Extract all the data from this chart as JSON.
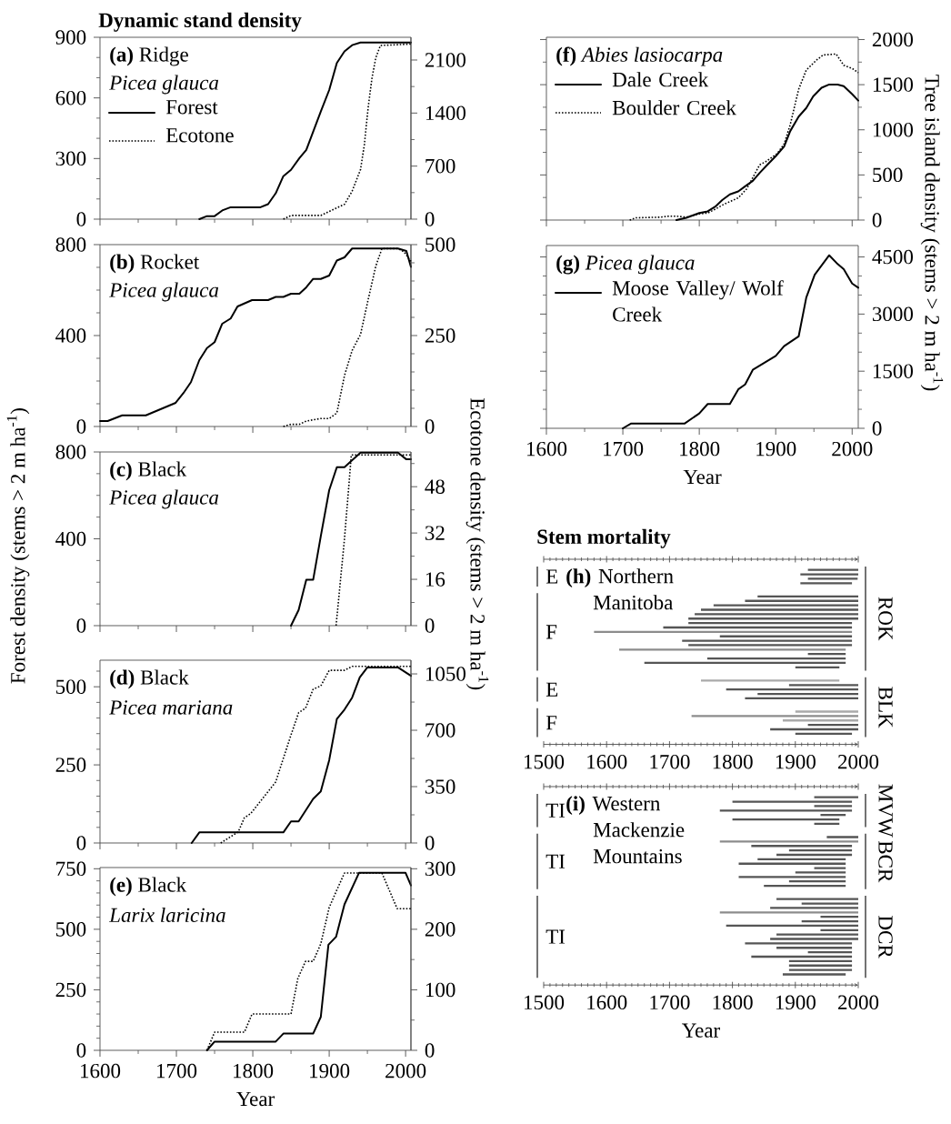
{
  "chart_data": [
    {
      "type": "line",
      "title": "**(a)** Ridge",
      "subtitle": "Picea glauca",
      "annotations": [
        "Dynamic stand density"
      ],
      "legend": "top left",
      "tick_labels": "y",
      "xlim": [
        1600,
        2007
      ],
      "xticks": [
        1600,
        {
          "value": 1650,
          "label": null
        },
        1700,
        {
          "value": 1750,
          "label": null
        },
        1800,
        {
          "value": 1850,
          "label": null
        },
        1900,
        {
          "value": 1950,
          "label": null
        },
        2000
      ],
      "ylim": [
        0,
        900
      ],
      "yticks": [
        0,
        {
          "value": 100,
          "label": null
        },
        {
          "value": 200,
          "label": null
        },
        300,
        {
          "value": 400,
          "label": null
        },
        {
          "value": 500,
          "label": null
        },
        600,
        {
          "value": 700,
          "label": null
        },
        {
          "value": 800,
          "label": null
        },
        900
      ],
      "y2lim": [
        0,
        2400
      ],
      "y2ticks": [
        0,
        {
          "value": 350,
          "label": null
        },
        700,
        {
          "value": 1050,
          "label": null
        },
        1400,
        {
          "value": 1750,
          "label": null
        },
        2100
      ],
      "series": [
        {
          "name": "Forest",
          "color": "#000000",
          "line_style": "solid",
          "x": [
            1730,
            1740,
            1750,
            1760,
            1771,
            1810,
            1820,
            1830,
            1840,
            1850,
            1861,
            1870,
            1879,
            1889,
            1900,
            1910,
            1920,
            1930,
            1941,
            2007
          ],
          "values": [
            0,
            15,
            15,
            43,
            59,
            59,
            74,
            128,
            213,
            244,
            302,
            343,
            433,
            533,
            639,
            773,
            830,
            861,
            874,
            874
          ]
        },
        {
          "name": "Ecotone",
          "color": "#000000",
          "line_style": "dotted",
          "axis": "y2",
          "x": [
            1840,
            1850,
            1889,
            1900,
            1920,
            1930,
            1941,
            1946,
            1951,
            1956,
            1961,
            1967,
            2007
          ],
          "values": [
            0,
            49,
            49,
            102,
            196,
            368,
            655,
            982,
            1474,
            1863,
            2129,
            2292,
            2310
          ]
        }
      ]
    },
    {
      "type": "line",
      "title": "**(b)** Rocket",
      "subtitle": "Picea glauca",
      "tick_labels": "y",
      "xlim": [
        1600,
        2007
      ],
      "xticks": [
        1600,
        {
          "value": 1650,
          "label": null
        },
        1700,
        {
          "value": 1750,
          "label": null
        },
        1800,
        {
          "value": 1850,
          "label": null
        },
        1900,
        {
          "value": 1950,
          "label": null
        },
        2000
      ],
      "ylim": [
        0,
        800
      ],
      "yticks": [
        0,
        {
          "value": 100,
          "label": null
        },
        {
          "value": 200,
          "label": null
        },
        {
          "value": 300,
          "label": null
        },
        400,
        {
          "value": 500,
          "label": null
        },
        {
          "value": 600,
          "label": null
        },
        {
          "value": 700,
          "label": null
        },
        800
      ],
      "y2lim": [
        0,
        500
      ],
      "y2ticks": [
        0,
        {
          "value": 50,
          "label": null
        },
        {
          "value": 100,
          "label": null
        },
        {
          "value": 150,
          "label": null
        },
        {
          "value": 200,
          "label": null
        },
        250,
        {
          "value": 300,
          "label": null
        },
        {
          "value": 350,
          "label": null
        },
        {
          "value": 400,
          "label": null
        },
        {
          "value": 450,
          "label": null
        },
        500
      ],
      "series": [
        {
          "color": "#000000",
          "line_style": "solid",
          "x": [
            1600,
            1610,
            1629,
            1660,
            1699,
            1709,
            1719,
            1730,
            1740,
            1750,
            1760,
            1771,
            1780,
            1799,
            1820,
            1830,
            1840,
            1850,
            1861,
            1870,
            1879,
            1889,
            1900,
            1910,
            1920,
            1930,
            1990,
            2001,
            2007
          ],
          "values": [
            24,
            24,
            49,
            49,
            104,
            146,
            195,
            292,
            345,
            371,
            452,
            475,
            528,
            556,
            556,
            570,
            570,
            584,
            584,
            612,
            649,
            649,
            664,
            730,
            744,
            783,
            783,
            772,
            702
          ]
        },
        {
          "color": "#000000",
          "line_style": "dotted",
          "axis": "y2",
          "x": [
            1840,
            1850,
            1861,
            1870,
            1889,
            1900,
            1910,
            1920,
            1930,
            1941,
            1951,
            1961,
            1969,
            1990,
            1998,
            2007
          ],
          "values": [
            0,
            6,
            6,
            15,
            22,
            22,
            37,
            140,
            209,
            253,
            349,
            441,
            489,
            489,
            480,
            454
          ]
        }
      ]
    },
    {
      "type": "line",
      "title": "**(c)** Black",
      "subtitle": "Picea glauca",
      "ylabel": "Forest density (stems > 2 m ha$^{-1}$)",
      "y2label": "Ecotone density (stems > 2 m ha$^{-1}$)",
      "tick_labels": "y",
      "xlim": [
        1600,
        2007
      ],
      "xticks": [
        1600,
        {
          "value": 1650,
          "label": null
        },
        1700,
        {
          "value": 1750,
          "label": null
        },
        1800,
        {
          "value": 1850,
          "label": null
        },
        1900,
        {
          "value": 1950,
          "label": null
        },
        2000
      ],
      "ylim": [
        0,
        800
      ],
      "yticks": [
        0,
        {
          "value": 100,
          "label": null
        },
        {
          "value": 200,
          "label": null
        },
        {
          "value": 300,
          "label": null
        },
        400,
        {
          "value": 500,
          "label": null
        },
        {
          "value": 600,
          "label": null
        },
        {
          "value": 700,
          "label": null
        },
        800
      ],
      "y2lim": [
        0,
        60
      ],
      "y2ticks": [
        0,
        {
          "value": 8,
          "label": null
        },
        16,
        {
          "value": 24,
          "label": null
        },
        32,
        {
          "value": 40,
          "label": null
        },
        48,
        {
          "value": 56,
          "label": null
        }
      ],
      "series": [
        {
          "color": "#000000",
          "line_style": "solid",
          "x": [
            1850,
            1860,
            1870,
            1879,
            1889,
            1900,
            1910,
            1920,
            1941,
            1990,
            2001,
            2007
          ],
          "values": [
            0,
            72,
            211,
            211,
            412,
            624,
            730,
            730,
            797,
            797,
            766,
            766
          ]
        },
        {
          "color": "#000000",
          "line_style": "dotted",
          "axis": "y2",
          "x": [
            1909,
            1920,
            1929,
            2007
          ],
          "values": [
            0,
            30,
            59,
            59
          ]
        }
      ]
    },
    {
      "type": "line",
      "title": "**(d)** Black",
      "subtitle": "Picea mariana",
      "tick_labels": "y",
      "xlim": [
        1600,
        2007
      ],
      "xticks": [
        1600,
        {
          "value": 1650,
          "label": null
        },
        1700,
        {
          "value": 1750,
          "label": null
        },
        1800,
        {
          "value": 1850,
          "label": null
        },
        1900,
        {
          "value": 1950,
          "label": null
        },
        2000
      ],
      "ylim": [
        0,
        585
      ],
      "yticks": [
        0,
        {
          "value": 50,
          "label": null
        },
        {
          "value": 100,
          "label": null
        },
        {
          "value": 150,
          "label": null
        },
        {
          "value": 200,
          "label": null
        },
        250,
        {
          "value": 300,
          "label": null
        },
        {
          "value": 350,
          "label": null
        },
        {
          "value": 400,
          "label": null
        },
        {
          "value": 450,
          "label": null
        },
        500,
        {
          "value": 550,
          "label": null
        }
      ],
      "y2lim": [
        0,
        1135
      ],
      "y2ticks": [
        0,
        {
          "value": 175,
          "label": null
        },
        350,
        {
          "value": 525,
          "label": null
        },
        700,
        {
          "value": 875,
          "label": null
        },
        1050
      ],
      "series": [
        {
          "color": "#000000",
          "line_style": "solid",
          "x": [
            1720,
            1730,
            1840,
            1850,
            1860,
            1879,
            1889,
            1900,
            1910,
            1920,
            1930,
            1940,
            1950,
            1990,
            2007
          ],
          "values": [
            0,
            34,
            34,
            69,
            69,
            141,
            165,
            265,
            397,
            427,
            465,
            530,
            562,
            562,
            535
          ]
        },
        {
          "color": "#000000",
          "line_style": "dotted",
          "axis": "y2",
          "x": [
            1758,
            1781,
            1789,
            1797,
            1830,
            1840,
            1850,
            1860,
            1869,
            1879,
            1889,
            1900,
            1920,
            1930,
            1950,
            2007
          ],
          "values": [
            0,
            69,
            157,
            182,
            379,
            526,
            671,
            809,
            837,
            955,
            975,
            1072,
            1072,
            1097,
            1097,
            1097
          ]
        }
      ]
    },
    {
      "type": "line",
      "title": "**(e)** Black",
      "subtitle": "Larix laricina",
      "xlabel": "Year",
      "xlim": [
        1600,
        2007
      ],
      "xticks": [
        1600,
        {
          "value": 1650,
          "label": null
        },
        1700,
        {
          "value": 1750,
          "label": null
        },
        1800,
        {
          "value": 1850,
          "label": null
        },
        1900,
        {
          "value": 1950,
          "label": null
        },
        2000
      ],
      "ylim": [
        0,
        755
      ],
      "yticks": [
        0,
        {
          "value": 50,
          "label": null
        },
        {
          "value": 100,
          "label": null
        },
        {
          "value": 150,
          "label": null
        },
        {
          "value": 200,
          "label": null
        },
        250,
        {
          "value": 300,
          "label": null
        },
        {
          "value": 350,
          "label": null
        },
        {
          "value": 400,
          "label": null
        },
        {
          "value": 450,
          "label": null
        },
        500,
        {
          "value": 550,
          "label": null
        },
        {
          "value": 600,
          "label": null
        },
        {
          "value": 650,
          "label": null
        },
        {
          "value": 700,
          "label": null
        },
        750
      ],
      "y2lim": [
        0,
        302
      ],
      "y2ticks": [
        0,
        {
          "value": 50,
          "label": null
        },
        100,
        {
          "value": 150,
          "label": null
        },
        200,
        {
          "value": 250,
          "label": null
        },
        300
      ],
      "series": [
        {
          "color": "#000000",
          "line_style": "solid",
          "x": [
            1740,
            1750,
            1830,
            1840,
            1879,
            1889,
            1899,
            1909,
            1920,
            1939,
            2000,
            2007
          ],
          "values": [
            0,
            36,
            36,
            69,
            69,
            138,
            436,
            469,
            603,
            733,
            733,
            681
          ]
        },
        {
          "color": "#000000",
          "line_style": "dotted",
          "axis": "y2",
          "x": [
            1740,
            1750,
            1789,
            1799,
            1850,
            1859,
            1869,
            1879,
            1889,
            1900,
            1910,
            1920,
            1969,
            1989,
            2007
          ],
          "values": [
            0,
            30,
            30,
            60,
            60,
            119,
            147,
            147,
            176,
            236,
            265,
            293,
            293,
            234,
            234
          ]
        }
      ]
    },
    {
      "type": "line",
      "title": "**(f)** *Abies lasiocarpa*",
      "ylabel": "Tree island density (stems > 2 m ha$^{-1}$)",
      "legend": "top left",
      "tick_labels": "y",
      "xlim": [
        1600,
        2008
      ],
      "xticks": [
        1600,
        {
          "value": 1650,
          "label": null
        },
        1700,
        {
          "value": 1750,
          "label": null
        },
        1800,
        {
          "value": 1850,
          "label": null
        },
        1900,
        {
          "value": 1950,
          "label": null
        },
        2000
      ],
      "ylim": [
        0,
        2025
      ],
      "yticks": [
        0,
        {
          "value": 250,
          "label": null
        },
        500,
        {
          "value": 750,
          "label": null
        },
        1000,
        {
          "value": 1250,
          "label": null
        },
        1500,
        {
          "value": 1750,
          "label": null
        },
        2000
      ],
      "series": [
        {
          "name": "Dale Creek",
          "color": "#000000",
          "line_style": "solid",
          "x": [
            1770,
            1783,
            1800,
            1811,
            1821,
            1830,
            1840,
            1851,
            1860,
            1870,
            1879,
            1889,
            1900,
            1911,
            1919,
            1930,
            1940,
            1949,
            1960,
            1970,
            1981,
            1989,
            2000,
            2008
          ],
          "values": [
            0,
            25,
            78,
            96,
            149,
            221,
            285,
            317,
            374,
            434,
            523,
            612,
            708,
            815,
            986,
            1146,
            1242,
            1370,
            1466,
            1502,
            1502,
            1484,
            1395,
            1324
          ]
        },
        {
          "name": "Boulder Creek",
          "color": "#000000",
          "line_style": "dotted",
          "x": [
            1709,
            1717,
            1749,
            1760,
            1770,
            1783,
            1800,
            1811,
            1821,
            1832,
            1851,
            1862,
            1870,
            1879,
            1887,
            1902,
            1911,
            1919,
            1930,
            1940,
            1953,
            1962,
            1979,
            1989,
            2000,
            2008
          ],
          "values": [
            0,
            25,
            32,
            43,
            43,
            32,
            68,
            78,
            121,
            174,
            246,
            345,
            470,
            612,
            648,
            737,
            843,
            1057,
            1448,
            1662,
            1769,
            1829,
            1840,
            1715,
            1680,
            1633
          ]
        }
      ]
    },
    {
      "type": "line",
      "title": "**(g)** *Picea glauca*",
      "xlabel": "Year",
      "legend": "top left",
      "xlim": [
        1600,
        2008
      ],
      "xticks": [
        1600,
        {
          "value": 1650,
          "label": null
        },
        1700,
        {
          "value": 1750,
          "label": null
        },
        1800,
        {
          "value": 1850,
          "label": null
        },
        1900,
        {
          "value": 1950,
          "label": null
        },
        2000
      ],
      "ylim": [
        0,
        4800
      ],
      "yticks": [
        0,
        {
          "value": 500,
          "label": null
        },
        {
          "value": 1000,
          "label": null
        },
        1500,
        {
          "value": 2000,
          "label": null
        },
        {
          "value": 2500,
          "label": null
        },
        3000,
        {
          "value": 3500,
          "label": null
        },
        {
          "value": 4000,
          "label": null
        },
        4500
      ],
      "series": [
        {
          "name": "Moose Valley/ Wolf Creek",
          "color": "#000000",
          "line_style": "solid",
          "x": [
            1700,
            1711,
            1781,
            1800,
            1811,
            1840,
            1851,
            1860,
            1870,
            1900,
            1911,
            1930,
            1940,
            1951,
            1970,
            1981,
            1989,
            2000,
            2008
          ],
          "values": [
            0,
            128,
            128,
            392,
            639,
            639,
            1023,
            1151,
            1535,
            1901,
            2157,
            2413,
            3436,
            4032,
            4544,
            4314,
            4177,
            3802,
            3691
          ]
        }
      ]
    },
    {
      "type": "bar",
      "orientation": "horizontal",
      "title": "Stem mortality",
      "subtitle": "**(h)** Northern Manitoba",
      "ylabel": "E",
      "y2label": "ROK",
      "tick_labels": false,
      "categories": [
        null,
        null,
        null,
        null
      ],
      "xlim": [
        1500,
        2000
      ],
      "xticks": [
        1500,
        {
          "value": 1510,
          "label": null
        },
        {
          "value": 1520,
          "label": null
        },
        {
          "value": 1530,
          "label": null
        },
        {
          "value": 1540,
          "label": null
        },
        {
          "value": 1550,
          "label": null
        },
        {
          "value": 1560,
          "label": null
        },
        {
          "value": 1570,
          "label": null
        },
        {
          "value": 1580,
          "label": null
        },
        {
          "value": 1590,
          "label": null
        },
        1600,
        {
          "value": 1610,
          "label": null
        },
        {
          "value": 1620,
          "label": null
        },
        {
          "value": 1630,
          "label": null
        },
        {
          "value": 1640,
          "label": null
        },
        {
          "value": 1650,
          "label": null
        },
        {
          "value": 1660,
          "label": null
        },
        {
          "value": 1670,
          "label": null
        },
        {
          "value": 1680,
          "label": null
        },
        {
          "value": 1690,
          "label": null
        },
        1700,
        {
          "value": 1710,
          "label": null
        },
        {
          "value": 1720,
          "label": null
        },
        {
          "value": 1730,
          "label": null
        },
        {
          "value": 1740,
          "label": null
        },
        {
          "value": 1750,
          "label": null
        },
        {
          "value": 1760,
          "label": null
        },
        {
          "value": 1770,
          "label": null
        },
        {
          "value": 1780,
          "label": null
        },
        {
          "value": 1790,
          "label": null
        },
        1800,
        {
          "value": 1810,
          "label": null
        },
        {
          "value": 1820,
          "label": null
        },
        {
          "value": 1830,
          "label": null
        },
        {
          "value": 1840,
          "label": null
        },
        {
          "value": 1850,
          "label": null
        },
        {
          "value": 1860,
          "label": null
        },
        {
          "value": 1870,
          "label": null
        },
        {
          "value": 1880,
          "label": null
        },
        {
          "value": 1890,
          "label": null
        },
        1900,
        {
          "value": 1910,
          "label": null
        },
        {
          "value": 1920,
          "label": null
        },
        {
          "value": 1930,
          "label": null
        },
        {
          "value": 1940,
          "label": null
        },
        {
          "value": 1950,
          "label": null
        },
        {
          "value": 1960,
          "label": null
        },
        {
          "value": 1970,
          "label": null
        },
        {
          "value": 1980,
          "label": null
        },
        {
          "value": 1990,
          "label": null
        },
        2000
      ],
      "base": [
        1920,
        1908,
        1920,
        1908
      ],
      "values": [
        80,
        92,
        79,
        82
      ],
      "colors": [
        "#555555",
        "#555555",
        "#555555",
        "#555555"
      ]
    },
    {
      "type": "bar",
      "orientation": "horizontal",
      "ylabel": "F",
      "tick_labels": false,
      "categories": [
        null,
        null,
        null,
        null,
        null,
        null,
        null,
        null,
        null,
        null,
        null,
        null,
        null,
        null,
        null,
        null,
        null
      ],
      "xlim": [
        1500,
        2000
      ],
      "base": [
        1840,
        1820,
        1770,
        1750,
        1740,
        1730,
        1730,
        1690,
        1580,
        1780,
        1720,
        1730,
        1620,
        1920,
        1760,
        1660,
        1900
      ],
      "values": [
        160,
        180,
        230,
        250,
        260,
        270,
        260,
        300,
        410,
        210,
        270,
        260,
        360,
        60,
        220,
        320,
        70
      ],
      "colors": [
        "#555555",
        "#555555",
        "#555555",
        "#555555",
        "#555555",
        "#555555",
        "#555555",
        "#555555",
        "#8c8c8c",
        "#555555",
        "#555555",
        "#555555",
        "#8c8c8c",
        "#555555",
        "#555555",
        "#555555",
        "#555555"
      ]
    },
    {
      "type": "bar",
      "orientation": "horizontal",
      "ylabel": "E",
      "y2label": "BLK",
      "tick_labels": false,
      "categories": [
        null,
        null,
        null,
        null,
        null
      ],
      "xlim": [
        1500,
        2000
      ],
      "base": [
        1750,
        1890,
        1790,
        1840,
        1820
      ],
      "values": [
        220,
        110,
        210,
        160,
        180
      ],
      "colors": [
        "#aaaaaa",
        "#555555",
        "#555555",
        "#555555",
        "#555555"
      ]
    },
    {
      "type": "bar",
      "orientation": "horizontal",
      "ylabel": "F",
      "tick_labels": "x",
      "categories": [
        null,
        null,
        null,
        null,
        null,
        null
      ],
      "xlim": [
        1500,
        2000
      ],
      "xticks": [
        1500,
        {
          "value": 1510,
          "label": null
        },
        {
          "value": 1520,
          "label": null
        },
        {
          "value": 1530,
          "label": null
        },
        {
          "value": 1540,
          "label": null
        },
        {
          "value": 1550,
          "label": null
        },
        {
          "value": 1560,
          "label": null
        },
        {
          "value": 1570,
          "label": null
        },
        {
          "value": 1580,
          "label": null
        },
        {
          "value": 1590,
          "label": null
        },
        1600,
        {
          "value": 1610,
          "label": null
        },
        {
          "value": 1620,
          "label": null
        },
        {
          "value": 1630,
          "label": null
        },
        {
          "value": 1640,
          "label": null
        },
        {
          "value": 1650,
          "label": null
        },
        {
          "value": 1660,
          "label": null
        },
        {
          "value": 1670,
          "label": null
        },
        {
          "value": 1680,
          "label": null
        },
        {
          "value": 1690,
          "label": null
        },
        1700,
        {
          "value": 1710,
          "label": null
        },
        {
          "value": 1720,
          "label": null
        },
        {
          "value": 1730,
          "label": null
        },
        {
          "value": 1740,
          "label": null
        },
        {
          "value": 1750,
          "label": null
        },
        {
          "value": 1760,
          "label": null
        },
        {
          "value": 1770,
          "label": null
        },
        {
          "value": 1780,
          "label": null
        },
        {
          "value": 1790,
          "label": null
        },
        1800,
        {
          "value": 1810,
          "label": null
        },
        {
          "value": 1820,
          "label": null
        },
        {
          "value": 1830,
          "label": null
        },
        {
          "value": 1840,
          "label": null
        },
        {
          "value": 1850,
          "label": null
        },
        {
          "value": 1860,
          "label": null
        },
        {
          "value": 1870,
          "label": null
        },
        {
          "value": 1880,
          "label": null
        },
        {
          "value": 1890,
          "label": null
        },
        1900,
        {
          "value": 1910,
          "label": null
        },
        {
          "value": 1920,
          "label": null
        },
        {
          "value": 1930,
          "label": null
        },
        {
          "value": 1940,
          "label": null
        },
        {
          "value": 1950,
          "label": null
        },
        {
          "value": 1960,
          "label": null
        },
        {
          "value": 1970,
          "label": null
        },
        {
          "value": 1980,
          "label": null
        },
        {
          "value": 1990,
          "label": null
        },
        2000
      ],
      "base": [
        1900,
        1735,
        1880,
        1920,
        1860,
        1900
      ],
      "values": [
        100,
        265,
        120,
        80,
        140,
        90
      ],
      "colors": [
        "#aaaaaa",
        "#8c8c8c",
        "#aaaaaa",
        "#555555",
        "#555555",
        "#555555"
      ]
    },
    {
      "type": "bar",
      "orientation": "horizontal",
      "subtitle": "**(i)** Western Mackenzie Mountains",
      "ylabel": "TI",
      "y2label": "MVW",
      "tick_labels": false,
      "categories": [
        null,
        null,
        null,
        null,
        null,
        null,
        null
      ],
      "xlim": [
        1500,
        2000
      ],
      "xticks": [
        1500,
        {
          "value": 1510,
          "label": null
        },
        {
          "value": 1520,
          "label": null
        },
        {
          "value": 1530,
          "label": null
        },
        {
          "value": 1540,
          "label": null
        },
        {
          "value": 1550,
          "label": null
        },
        {
          "value": 1560,
          "label": null
        },
        {
          "value": 1570,
          "label": null
        },
        {
          "value": 1580,
          "label": null
        },
        {
          "value": 1590,
          "label": null
        },
        1600,
        {
          "value": 1610,
          "label": null
        },
        {
          "value": 1620,
          "label": null
        },
        {
          "value": 1630,
          "label": null
        },
        {
          "value": 1640,
          "label": null
        },
        {
          "value": 1650,
          "label": null
        },
        {
          "value": 1660,
          "label": null
        },
        {
          "value": 1670,
          "label": null
        },
        {
          "value": 1680,
          "label": null
        },
        {
          "value": 1690,
          "label": null
        },
        1700,
        {
          "value": 1710,
          "label": null
        },
        {
          "value": 1720,
          "label": null
        },
        {
          "value": 1730,
          "label": null
        },
        {
          "value": 1740,
          "label": null
        },
        {
          "value": 1750,
          "label": null
        },
        {
          "value": 1760,
          "label": null
        },
        {
          "value": 1770,
          "label": null
        },
        {
          "value": 1780,
          "label": null
        },
        {
          "value": 1790,
          "label": null
        },
        1800,
        {
          "value": 1810,
          "label": null
        },
        {
          "value": 1820,
          "label": null
        },
        {
          "value": 1830,
          "label": null
        },
        {
          "value": 1840,
          "label": null
        },
        {
          "value": 1850,
          "label": null
        },
        {
          "value": 1860,
          "label": null
        },
        {
          "value": 1870,
          "label": null
        },
        {
          "value": 1880,
          "label": null
        },
        {
          "value": 1890,
          "label": null
        },
        1900,
        {
          "value": 1910,
          "label": null
        },
        {
          "value": 1920,
          "label": null
        },
        {
          "value": 1930,
          "label": null
        },
        {
          "value": 1940,
          "label": null
        },
        {
          "value": 1950,
          "label": null
        },
        {
          "value": 1960,
          "label": null
        },
        {
          "value": 1970,
          "label": null
        },
        {
          "value": 1980,
          "label": null
        },
        {
          "value": 1990,
          "label": null
        },
        2000
      ],
      "base": [
        1930,
        1800,
        1930,
        1780,
        1940,
        1800,
        1930
      ],
      "values": [
        70,
        190,
        60,
        210,
        40,
        170,
        40
      ],
      "colors": [
        "#555555",
        "#555555",
        "#555555",
        "#555555",
        "#555555",
        "#555555",
        "#555555"
      ]
    },
    {
      "type": "bar",
      "orientation": "horizontal",
      "ylabel": "TI",
      "y2label": "BCR",
      "tick_labels": false,
      "categories": [
        null,
        null,
        null,
        null,
        null,
        null,
        null,
        null,
        null,
        null,
        null,
        null
      ],
      "xlim": [
        1500,
        2000
      ],
      "base": [
        1950,
        1780,
        1830,
        1890,
        1870,
        1840,
        1810,
        1930,
        1900,
        1810,
        1890,
        1850
      ],
      "values": [
        50,
        220,
        160,
        100,
        120,
        140,
        170,
        50,
        80,
        170,
        90,
        130
      ],
      "colors": [
        "#555555",
        "#8c8c8c",
        "#555555",
        "#555555",
        "#555555",
        "#555555",
        "#555555",
        "#555555",
        "#555555",
        "#555555",
        "#555555",
        "#555555"
      ]
    },
    {
      "type": "bar",
      "orientation": "horizontal",
      "ylabel": "TI",
      "y2label": "DCR",
      "xlabel": "Year",
      "tick_labels": "x",
      "categories": [
        null,
        null,
        null,
        null,
        null,
        null,
        null,
        null,
        null,
        null,
        null,
        null,
        null,
        null,
        null,
        null,
        null,
        null
      ],
      "xlim": [
        1500,
        2000
      ],
      "xticks": [
        1500,
        {
          "value": 1510,
          "label": null
        },
        {
          "value": 1520,
          "label": null
        },
        {
          "value": 1530,
          "label": null
        },
        {
          "value": 1540,
          "label": null
        },
        {
          "value": 1550,
          "label": null
        },
        {
          "value": 1560,
          "label": null
        },
        {
          "value": 1570,
          "label": null
        },
        {
          "value": 1580,
          "label": null
        },
        {
          "value": 1590,
          "label": null
        },
        1600,
        {
          "value": 1610,
          "label": null
        },
        {
          "value": 1620,
          "label": null
        },
        {
          "value": 1630,
          "label": null
        },
        {
          "value": 1640,
          "label": null
        },
        {
          "value": 1650,
          "label": null
        },
        {
          "value": 1660,
          "label": null
        },
        {
          "value": 1670,
          "label": null
        },
        {
          "value": 1680,
          "label": null
        },
        {
          "value": 1690,
          "label": null
        },
        1700,
        {
          "value": 1710,
          "label": null
        },
        {
          "value": 1720,
          "label": null
        },
        {
          "value": 1730,
          "label": null
        },
        {
          "value": 1740,
          "label": null
        },
        {
          "value": 1750,
          "label": null
        },
        {
          "value": 1760,
          "label": null
        },
        {
          "value": 1770,
          "label": null
        },
        {
          "value": 1780,
          "label": null
        },
        {
          "value": 1790,
          "label": null
        },
        1800,
        {
          "value": 1810,
          "label": null
        },
        {
          "value": 1820,
          "label": null
        },
        {
          "value": 1830,
          "label": null
        },
        {
          "value": 1840,
          "label": null
        },
        {
          "value": 1850,
          "label": null
        },
        {
          "value": 1860,
          "label": null
        },
        {
          "value": 1870,
          "label": null
        },
        {
          "value": 1880,
          "label": null
        },
        {
          "value": 1890,
          "label": null
        },
        1900,
        {
          "value": 1910,
          "label": null
        },
        {
          "value": 1920,
          "label": null
        },
        {
          "value": 1930,
          "label": null
        },
        {
          "value": 1940,
          "label": null
        },
        {
          "value": 1950,
          "label": null
        },
        {
          "value": 1960,
          "label": null
        },
        {
          "value": 1970,
          "label": null
        },
        {
          "value": 1980,
          "label": null
        },
        {
          "value": 1990,
          "label": null
        },
        2000
      ],
      "base": [
        1870,
        1910,
        1860,
        1780,
        1940,
        1910,
        1790,
        1940,
        1870,
        1860,
        1820,
        1870,
        1920,
        1830,
        1890,
        1890,
        1890,
        1880
      ],
      "values": [
        130,
        90,
        140,
        220,
        60,
        90,
        210,
        60,
        130,
        140,
        170,
        120,
        70,
        160,
        100,
        100,
        100,
        100
      ],
      "colors": [
        "#555555",
        "#555555",
        "#555555",
        "#8c8c8c",
        "#555555",
        "#555555",
        "#555555",
        "#555555",
        "#555555",
        "#555555",
        "#555555",
        "#555555",
        "#555555",
        "#555555",
        "#555555",
        "#555555",
        "#555555",
        "#555555"
      ]
    }
  ]
}
